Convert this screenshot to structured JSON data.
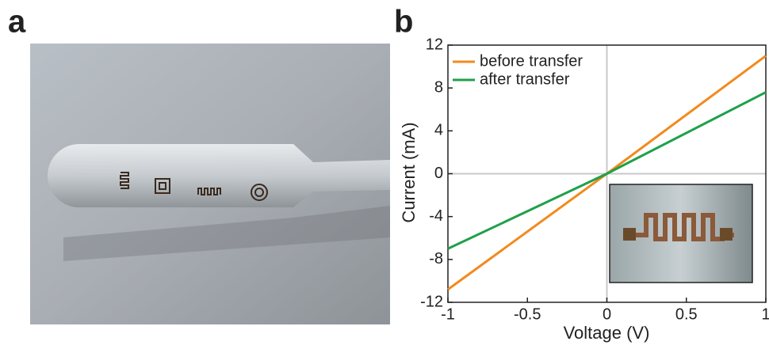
{
  "panels": [
    "a",
    "b"
  ],
  "chart_data": {
    "type": "line",
    "xlabel": "Voltage (V)",
    "ylabel": "Current (mA)",
    "xlim": [
      -1,
      1
    ],
    "xticks": [
      -1,
      -0.5,
      0,
      0.5,
      1
    ],
    "ylim": [
      -12,
      12
    ],
    "yticks": [
      -12,
      -8,
      -4,
      0,
      4,
      8,
      12
    ],
    "zero_lines": true,
    "legend": "upper left",
    "x": [
      -1,
      0,
      1
    ],
    "series": [
      {
        "name": "before transfer",
        "color": "#f28a1e",
        "values": [
          -10.8,
          0,
          11
        ]
      },
      {
        "name": "after transfer",
        "color": "#1fa04a",
        "values": [
          -7,
          0,
          7.6
        ]
      }
    ]
  }
}
